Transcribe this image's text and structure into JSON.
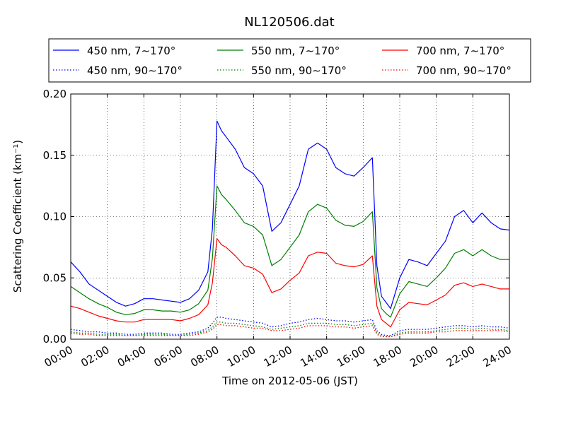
{
  "chart_data": {
    "type": "line",
    "title": "NL120506.dat",
    "xlabel": "Time on 2012-05-06 (JST)",
    "ylabel": "Scattering Coefficient (km⁻¹)",
    "xlim": [
      0,
      24
    ],
    "ylim": [
      0,
      0.2
    ],
    "grid": true,
    "legend_position": "top, above plot",
    "x_tick_labels": [
      "00:00",
      "02:00",
      "04:00",
      "06:00",
      "08:00",
      "10:00",
      "12:00",
      "14:00",
      "16:00",
      "18:00",
      "20:00",
      "22:00",
      "24:00"
    ],
    "y_tick_labels": [
      "0.00",
      "0.05",
      "0.10",
      "0.15",
      "0.20"
    ],
    "x": [
      0,
      0.5,
      1,
      1.5,
      2,
      2.5,
      3,
      3.5,
      4,
      4.5,
      5,
      5.5,
      6,
      6.5,
      7,
      7.5,
      7.75,
      8,
      8.25,
      8.5,
      9,
      9.5,
      10,
      10.5,
      11,
      11.5,
      12,
      12.5,
      13,
      13.5,
      14,
      14.5,
      15,
      15.5,
      16,
      16.5,
      16.75,
      17,
      17.25,
      17.5,
      18,
      18.5,
      19,
      19.5,
      20,
      20.5,
      21,
      21.5,
      22,
      22.5,
      23,
      23.5,
      24
    ],
    "series": [
      {
        "name": "450 nm, 7∼170°",
        "color": "#0000ff",
        "style": "solid",
        "values": [
          0.063,
          0.055,
          0.045,
          0.04,
          0.035,
          0.03,
          0.027,
          0.029,
          0.033,
          0.033,
          0.032,
          0.031,
          0.03,
          0.033,
          0.04,
          0.055,
          0.09,
          0.178,
          0.17,
          0.165,
          0.155,
          0.14,
          0.135,
          0.125,
          0.088,
          0.095,
          0.11,
          0.125,
          0.155,
          0.16,
          0.155,
          0.14,
          0.135,
          0.133,
          0.14,
          0.148,
          0.06,
          0.035,
          0.03,
          0.025,
          0.05,
          0.065,
          0.063,
          0.06,
          0.07,
          0.08,
          0.1,
          0.105,
          0.095,
          0.103,
          0.095,
          0.09,
          0.089
        ]
      },
      {
        "name": "550 nm, 7∼170°",
        "color": "#008000",
        "style": "solid",
        "values": [
          0.043,
          0.038,
          0.033,
          0.029,
          0.026,
          0.022,
          0.02,
          0.021,
          0.024,
          0.024,
          0.023,
          0.023,
          0.022,
          0.024,
          0.029,
          0.04,
          0.066,
          0.125,
          0.118,
          0.114,
          0.105,
          0.095,
          0.092,
          0.085,
          0.06,
          0.065,
          0.075,
          0.085,
          0.104,
          0.11,
          0.107,
          0.097,
          0.093,
          0.092,
          0.096,
          0.104,
          0.042,
          0.025,
          0.021,
          0.018,
          0.037,
          0.047,
          0.045,
          0.043,
          0.05,
          0.058,
          0.07,
          0.073,
          0.068,
          0.073,
          0.068,
          0.065,
          0.065
        ]
      },
      {
        "name": "700 nm, 7∼170°",
        "color": "#ff0000",
        "style": "solid",
        "values": [
          0.027,
          0.025,
          0.022,
          0.019,
          0.017,
          0.015,
          0.014,
          0.014,
          0.016,
          0.016,
          0.016,
          0.016,
          0.015,
          0.017,
          0.02,
          0.028,
          0.046,
          0.082,
          0.077,
          0.075,
          0.068,
          0.06,
          0.058,
          0.053,
          0.038,
          0.041,
          0.048,
          0.054,
          0.068,
          0.071,
          0.07,
          0.062,
          0.06,
          0.059,
          0.061,
          0.068,
          0.027,
          0.016,
          0.013,
          0.01,
          0.024,
          0.03,
          0.029,
          0.028,
          0.032,
          0.036,
          0.044,
          0.046,
          0.043,
          0.045,
          0.043,
          0.041,
          0.041
        ]
      },
      {
        "name": "450 nm, 90∼170°",
        "color": "#0000ff",
        "style": "dotted",
        "values": [
          0.008,
          0.007,
          0.006,
          0.006,
          0.005,
          0.005,
          0.004,
          0.004,
          0.005,
          0.005,
          0.005,
          0.004,
          0.004,
          0.005,
          0.006,
          0.009,
          0.013,
          0.018,
          0.018,
          0.017,
          0.016,
          0.015,
          0.014,
          0.013,
          0.01,
          0.011,
          0.013,
          0.014,
          0.016,
          0.017,
          0.016,
          0.015,
          0.015,
          0.014,
          0.015,
          0.016,
          0.007,
          0.004,
          0.003,
          0.003,
          0.007,
          0.008,
          0.008,
          0.008,
          0.009,
          0.01,
          0.011,
          0.011,
          0.01,
          0.011,
          0.01,
          0.01,
          0.009
        ]
      },
      {
        "name": "550 nm, 90∼170°",
        "color": "#008000",
        "style": "dotted",
        "values": [
          0.006,
          0.005,
          0.005,
          0.004,
          0.004,
          0.004,
          0.003,
          0.003,
          0.004,
          0.004,
          0.004,
          0.003,
          0.003,
          0.004,
          0.005,
          0.007,
          0.01,
          0.014,
          0.014,
          0.013,
          0.013,
          0.012,
          0.011,
          0.01,
          0.008,
          0.009,
          0.01,
          0.011,
          0.013,
          0.013,
          0.013,
          0.012,
          0.012,
          0.011,
          0.012,
          0.013,
          0.005,
          0.003,
          0.002,
          0.002,
          0.005,
          0.006,
          0.006,
          0.006,
          0.007,
          0.008,
          0.009,
          0.009,
          0.008,
          0.009,
          0.008,
          0.008,
          0.007
        ]
      },
      {
        "name": "700 nm, 90∼170°",
        "color": "#ff0000",
        "style": "dotted",
        "values": [
          0.005,
          0.004,
          0.004,
          0.003,
          0.003,
          0.003,
          0.003,
          0.003,
          0.003,
          0.003,
          0.003,
          0.003,
          0.003,
          0.003,
          0.004,
          0.006,
          0.008,
          0.012,
          0.012,
          0.011,
          0.011,
          0.01,
          0.009,
          0.009,
          0.007,
          0.007,
          0.008,
          0.009,
          0.011,
          0.011,
          0.011,
          0.01,
          0.01,
          0.009,
          0.01,
          0.011,
          0.004,
          0.002,
          0.002,
          0.002,
          0.004,
          0.005,
          0.005,
          0.005,
          0.006,
          0.006,
          0.007,
          0.007,
          0.007,
          0.007,
          0.007,
          0.007,
          0.006
        ]
      }
    ]
  }
}
